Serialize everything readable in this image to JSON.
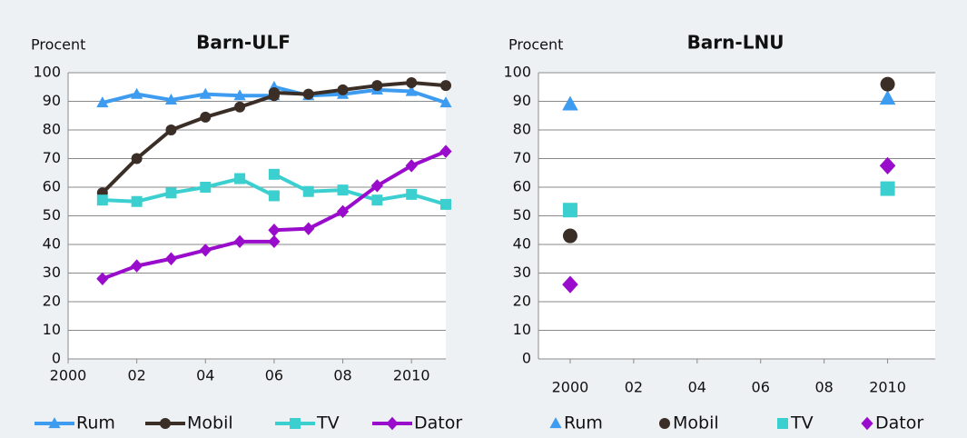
{
  "chart_data": [
    {
      "type": "line",
      "title": "Barn-ULF",
      "ylabel": "Procent",
      "x": [
        2001,
        2002,
        2003,
        2004,
        2005,
        2006,
        2006,
        2006,
        2007,
        2008,
        2009,
        2010,
        2011
      ],
      "series": [
        {
          "name": "Rum",
          "color": "#3d9cf0",
          "marker": "triangle",
          "values": [
            89.5,
            92.5,
            90.5,
            92.5,
            92,
            92,
            null,
            95,
            92,
            92.5,
            94,
            93.5,
            89.5
          ]
        },
        {
          "name": "Mobil",
          "color": "#3a2e27",
          "marker": "circle",
          "values": [
            58,
            70,
            80,
            84.5,
            88,
            92,
            null,
            93,
            92.5,
            94,
            95.5,
            96.5,
            95.5
          ]
        },
        {
          "name": "TV",
          "color": "#3ccfcf",
          "marker": "square",
          "values": [
            55.5,
            55,
            58,
            60,
            63,
            57,
            null,
            64.5,
            58.5,
            59,
            55.5,
            57.5,
            54
          ]
        },
        {
          "name": "Dator",
          "color": "#9a0ccc",
          "marker": "diamond",
          "values": [
            28,
            32.5,
            35,
            38,
            41,
            41,
            null,
            45,
            45.5,
            51.5,
            60.5,
            67.5,
            72.5
          ]
        }
      ],
      "xlim": [
        2000,
        2011
      ],
      "xticks": [
        2000,
        {
          "value": 2002,
          "label": "02"
        },
        {
          "value": 2004,
          "label": "04"
        },
        {
          "value": 2006,
          "label": "06"
        },
        {
          "value": 2008,
          "label": "08"
        },
        2010
      ],
      "ylim": [
        0,
        100
      ],
      "yticks": [
        0,
        10,
        20,
        30,
        40,
        50,
        60,
        70,
        80,
        90,
        100
      ],
      "grid": true,
      "legend": "bottom"
    },
    {
      "type": "scatter",
      "title": "Barn-LNU",
      "ylabel": "Procent",
      "x": [
        2000,
        2010
      ],
      "series": [
        {
          "name": "Rum",
          "color": "#3d9cf0",
          "marker": "triangle",
          "values": [
            89,
            91
          ]
        },
        {
          "name": "Mobil",
          "color": "#3a2e27",
          "marker": "circle",
          "values": [
            43,
            96
          ]
        },
        {
          "name": "TV",
          "color": "#3ccfcf",
          "marker": "square",
          "values": [
            52,
            59.5
          ]
        },
        {
          "name": "Dator",
          "color": "#9a0ccc",
          "marker": "diamond",
          "values": [
            26,
            67.5
          ]
        }
      ],
      "xlim": [
        1999,
        2011.5
      ],
      "xticks": [
        2000,
        {
          "value": 2002,
          "label": "02"
        },
        {
          "value": 2004,
          "label": "04"
        },
        {
          "value": 2006,
          "label": "06"
        },
        {
          "value": 2008,
          "label": "08"
        },
        2010
      ],
      "ylim": [
        0,
        100
      ],
      "yticks": [
        0,
        10,
        20,
        30,
        40,
        50,
        60,
        70,
        80,
        90,
        100
      ],
      "grid": true,
      "legend": "bottom"
    }
  ]
}
